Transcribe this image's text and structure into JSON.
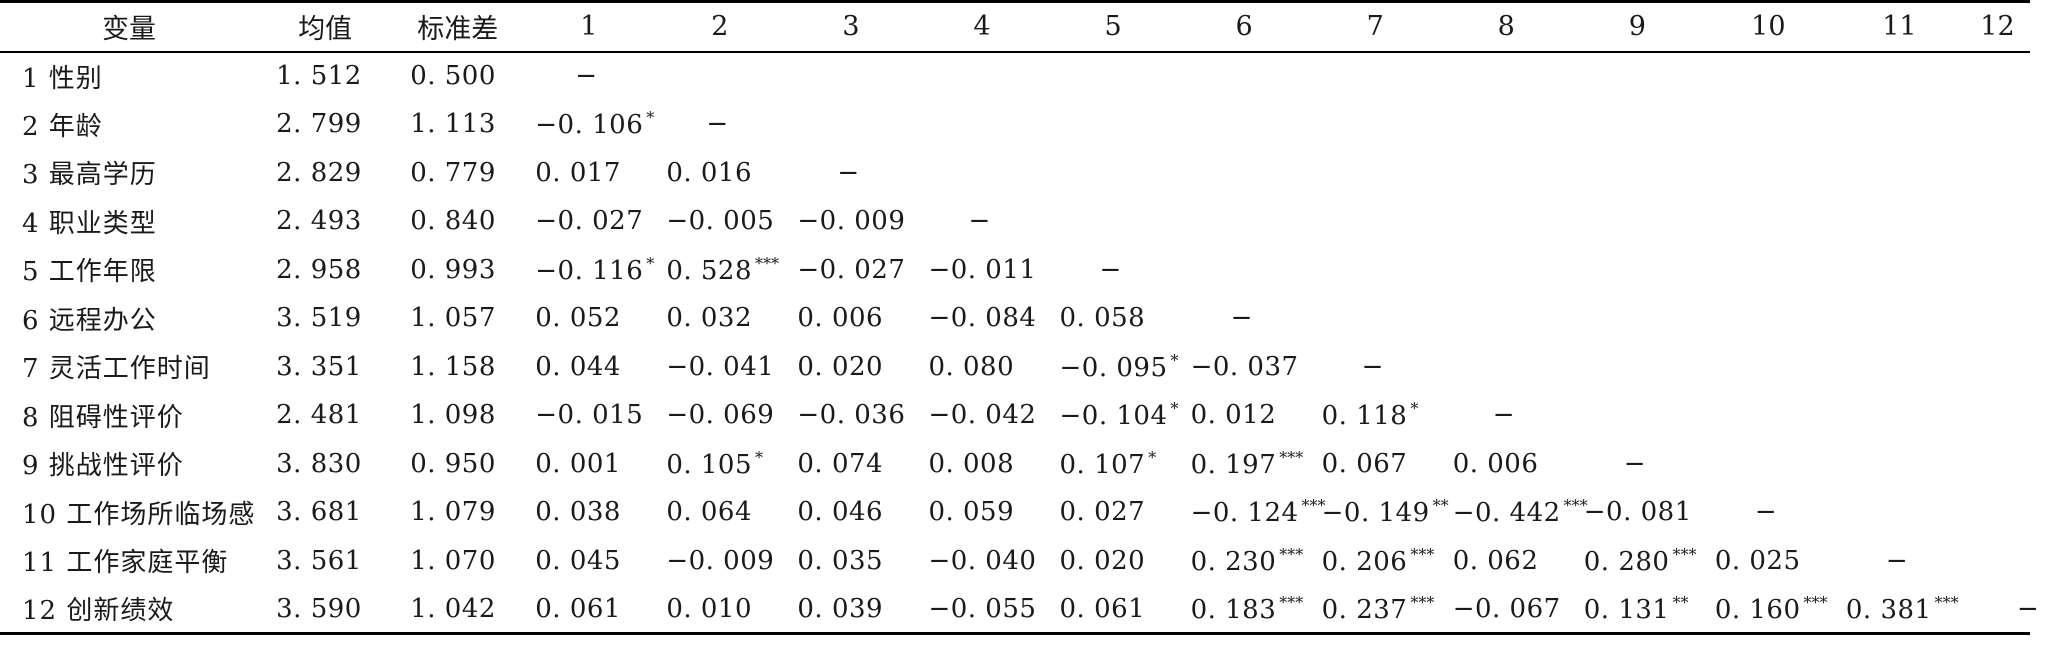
{
  "table": {
    "headers": [
      "变量",
      "均值",
      "标准差",
      "1",
      "2",
      "3",
      "4",
      "5",
      "6",
      "7",
      "8",
      "9",
      "10",
      "11",
      "12"
    ],
    "rows": [
      {
        "name": "1 性别",
        "mean": "1. 512",
        "sd": "0. 500",
        "cells": [
          {
            "v": "−"
          }
        ]
      },
      {
        "name": "2 年龄",
        "mean": "2. 799",
        "sd": "1. 113",
        "cells": [
          {
            "v": "−0. 106",
            "s": "*"
          },
          {
            "v": "−"
          }
        ]
      },
      {
        "name": "3 最高学历",
        "mean": "2. 829",
        "sd": "0. 779",
        "cells": [
          {
            "v": "0. 017"
          },
          {
            "v": "0. 016"
          },
          {
            "v": "−"
          }
        ]
      },
      {
        "name": "4 职业类型",
        "mean": "2. 493",
        "sd": "0. 840",
        "cells": [
          {
            "v": "−0. 027"
          },
          {
            "v": "−0. 005"
          },
          {
            "v": "−0. 009"
          },
          {
            "v": "−"
          }
        ]
      },
      {
        "name": "5 工作年限",
        "mean": "2. 958",
        "sd": "0. 993",
        "cells": [
          {
            "v": "−0. 116",
            "s": "*"
          },
          {
            "v": "0. 528",
            "s": "***"
          },
          {
            "v": "−0. 027"
          },
          {
            "v": "−0. 011"
          },
          {
            "v": "−"
          }
        ]
      },
      {
        "name": "6 远程办公",
        "mean": "3. 519",
        "sd": "1. 057",
        "cells": [
          {
            "v": "0. 052"
          },
          {
            "v": "0. 032"
          },
          {
            "v": "0. 006"
          },
          {
            "v": "−0. 084"
          },
          {
            "v": "0. 058"
          },
          {
            "v": "−"
          }
        ]
      },
      {
        "name": "7 灵活工作时间",
        "mean": "3. 351",
        "sd": "1. 158",
        "cells": [
          {
            "v": "0. 044"
          },
          {
            "v": "−0. 041"
          },
          {
            "v": "0. 020"
          },
          {
            "v": "0. 080"
          },
          {
            "v": "−0. 095",
            "s": "*"
          },
          {
            "v": "−0. 037"
          },
          {
            "v": "−"
          }
        ]
      },
      {
        "name": "8 阻碍性评价",
        "mean": "2. 481",
        "sd": "1. 098",
        "cells": [
          {
            "v": "−0. 015"
          },
          {
            "v": "−0. 069"
          },
          {
            "v": "−0. 036"
          },
          {
            "v": "−0. 042"
          },
          {
            "v": "−0. 104",
            "s": "*"
          },
          {
            "v": "0. 012"
          },
          {
            "v": "0. 118",
            "s": "*"
          },
          {
            "v": "−"
          }
        ]
      },
      {
        "name": "9 挑战性评价",
        "mean": "3. 830",
        "sd": "0. 950",
        "cells": [
          {
            "v": "0. 001"
          },
          {
            "v": "0. 105",
            "s": "*"
          },
          {
            "v": "0. 074"
          },
          {
            "v": "0. 008"
          },
          {
            "v": "0. 107",
            "s": "*"
          },
          {
            "v": "0. 197",
            "s": "***"
          },
          {
            "v": "0. 067"
          },
          {
            "v": "0. 006"
          },
          {
            "v": "−"
          }
        ]
      },
      {
        "name": "10 工作场所临场感",
        "mean": "3. 681",
        "sd": "1. 079",
        "cells": [
          {
            "v": "0. 038"
          },
          {
            "v": "0. 064"
          },
          {
            "v": "0. 046"
          },
          {
            "v": "0. 059"
          },
          {
            "v": "0. 027"
          },
          {
            "v": "−0. 124",
            "s": "***"
          },
          {
            "v": "−0. 149",
            "s": "**"
          },
          {
            "v": "−0. 442",
            "s": "***"
          },
          {
            "v": "−0. 081"
          },
          {
            "v": "−"
          }
        ]
      },
      {
        "name": "11 工作家庭平衡",
        "mean": "3. 561",
        "sd": "1. 070",
        "cells": [
          {
            "v": "0. 045"
          },
          {
            "v": "−0. 009"
          },
          {
            "v": "0. 035"
          },
          {
            "v": "−0. 040"
          },
          {
            "v": "0. 020"
          },
          {
            "v": "0. 230",
            "s": "***"
          },
          {
            "v": "0. 206",
            "s": "***"
          },
          {
            "v": "0. 062"
          },
          {
            "v": "0. 280",
            "s": "***"
          },
          {
            "v": "0. 025"
          },
          {
            "v": "−"
          }
        ]
      },
      {
        "name": "12 创新绩效",
        "mean": "3. 590",
        "sd": "1. 042",
        "cells": [
          {
            "v": "0. 061"
          },
          {
            "v": "0. 010"
          },
          {
            "v": "0. 039"
          },
          {
            "v": "−0. 055"
          },
          {
            "v": "0. 061"
          },
          {
            "v": "0. 183",
            "s": "***"
          },
          {
            "v": "0. 237",
            "s": "***"
          },
          {
            "v": "−0. 067"
          },
          {
            "v": "0. 131",
            "s": "**"
          },
          {
            "v": "0. 160",
            "s": "***"
          },
          {
            "v": "0. 381",
            "s": "***"
          },
          {
            "v": "−"
          }
        ]
      }
    ]
  }
}
